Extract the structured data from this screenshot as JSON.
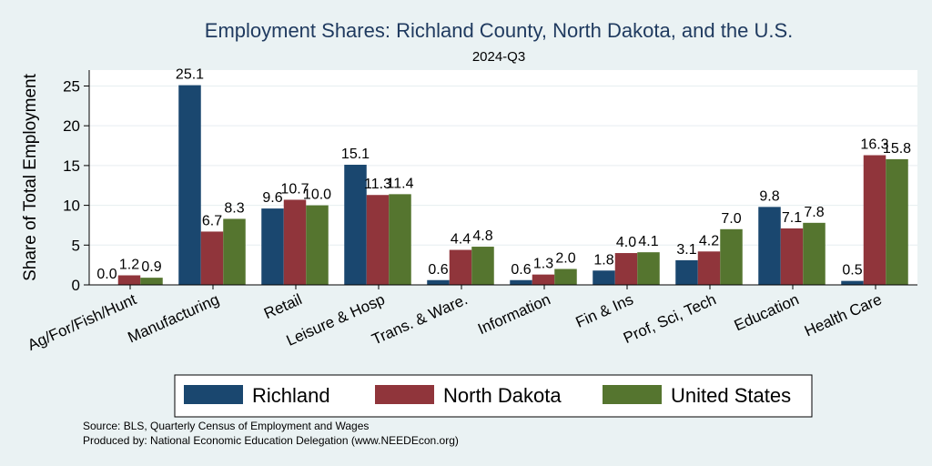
{
  "chart_data": {
    "type": "bar",
    "title": "Employment Shares: Richland County, North Dakota, and the U.S.",
    "subtitle": "2024-Q3",
    "xlabel": "",
    "ylabel": "Share of Total Employment",
    "ylim": [
      0,
      27
    ],
    "yticks": [
      0,
      5,
      10,
      15,
      20,
      25
    ],
    "grid": true,
    "legend_position": "bottom",
    "categories": [
      "Ag/For/Fish/Hunt",
      "Manufacturing",
      "Retail",
      "Leisure & Hosp",
      "Trans. & Ware.",
      "Information",
      "Fin & Ins",
      "Prof, Sci, Tech",
      "Education",
      "Health Care"
    ],
    "series": [
      {
        "name": "Richland",
        "color": "#1a476f",
        "values": [
          0.0,
          25.1,
          9.6,
          15.1,
          0.6,
          0.6,
          1.8,
          3.1,
          9.8,
          0.5
        ]
      },
      {
        "name": "North Dakota",
        "color": "#90353b",
        "values": [
          1.2,
          6.7,
          10.7,
          11.3,
          4.4,
          1.3,
          4.0,
          4.2,
          7.1,
          16.3
        ]
      },
      {
        "name": "United States",
        "color": "#55752f",
        "values": [
          0.9,
          8.3,
          10.0,
          11.4,
          4.8,
          2.0,
          4.1,
          7.0,
          7.8,
          15.8
        ]
      }
    ],
    "notes": [
      "Source: BLS, Quarterly Census of Employment and Wages",
      "Produced by: National Economic Education Delegation (www.NEEDEcon.org)"
    ]
  }
}
